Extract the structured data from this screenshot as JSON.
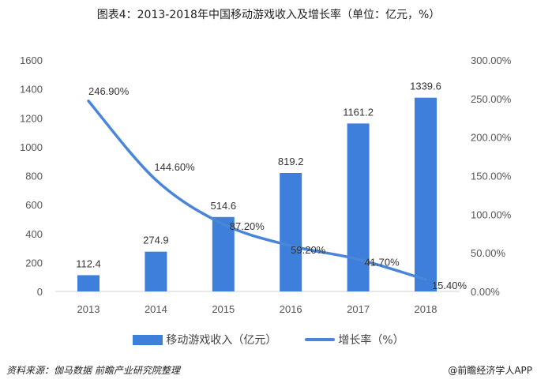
{
  "title": "图表4：2013-2018年中国移动游戏收入及增长率（单位：亿元，%）",
  "source": "资料来源：伽马数据 前瞻产业研究院整理",
  "credit": "@前瞻经济学人APP",
  "chart_data": {
    "type": "bar+line",
    "categories": [
      "2013",
      "2014",
      "2015",
      "2016",
      "2017",
      "2018"
    ],
    "series": [
      {
        "name": "移动游戏收入（亿元）",
        "type": "bar",
        "axis": "left",
        "values": [
          112.4,
          274.9,
          514.6,
          819.2,
          1161.2,
          1339.6
        ],
        "labels": [
          "112.4",
          "274.9",
          "514.6",
          "819.2",
          "1161.2",
          "1339.6"
        ],
        "color": "#3d7fdb"
      },
      {
        "name": "增长率（%）",
        "type": "line",
        "axis": "right",
        "values": [
          246.9,
          144.6,
          87.2,
          59.2,
          41.7,
          15.4
        ],
        "labels": [
          "246.90%",
          "144.60%",
          "87.20%",
          "59.20%",
          "41.70%",
          "15.40%"
        ],
        "color": "#4a86d8"
      }
    ],
    "left_axis": {
      "ylim": [
        0,
        1600
      ],
      "ticks": [
        "0",
        "200",
        "400",
        "600",
        "800",
        "1000",
        "1200",
        "1400",
        "1600"
      ]
    },
    "right_axis": {
      "ylim": [
        0,
        300
      ],
      "ticks": [
        "0.00%",
        "50.00%",
        "100.00%",
        "150.00%",
        "200.00%",
        "250.00%",
        "300.00%"
      ]
    },
    "grid": false,
    "legend": "bottom"
  }
}
